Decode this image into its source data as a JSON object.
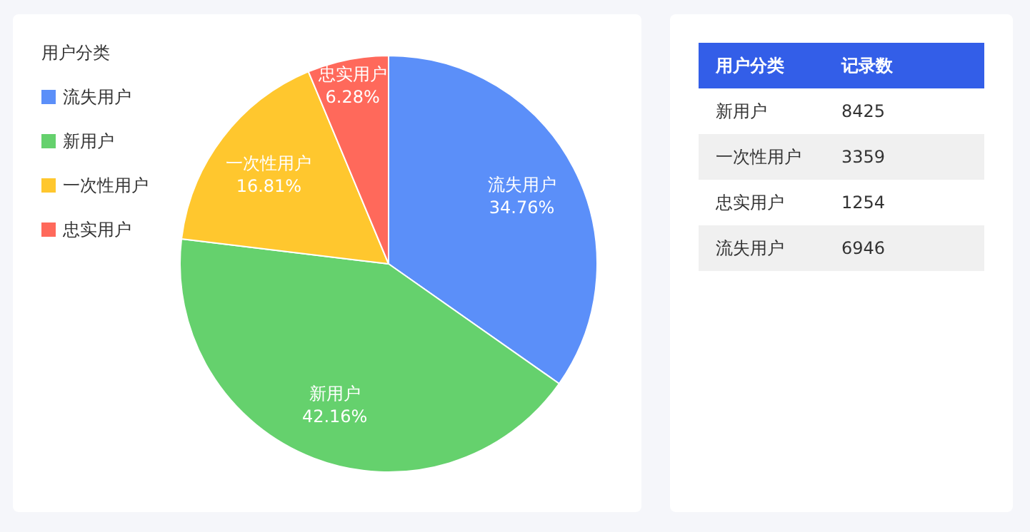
{
  "chart_data": [
    {
      "type": "pie",
      "legend_title": "用户分类",
      "legend": "top left",
      "categories": [
        "流失用户",
        "新用户",
        "一次性用户",
        "忠实用户"
      ],
      "values": [
        34.76,
        42.16,
        16.81,
        6.28
      ],
      "colors": [
        "#5b8ff9",
        "#65d16d",
        "#ffc72e",
        "#ff695b"
      ],
      "value_labels": [
        "34.76%",
        "42.16%",
        "16.81%",
        "6.28%"
      ]
    },
    {
      "type": "other",
      "xlabel": "用户分类",
      "ylabel": "记录数",
      "categories": [
        "新用户",
        "一次性用户",
        "忠实用户",
        "流失用户"
      ],
      "values": [
        8425,
        3359,
        1254,
        6946
      ],
      "data_labels": true
    }
  ]
}
